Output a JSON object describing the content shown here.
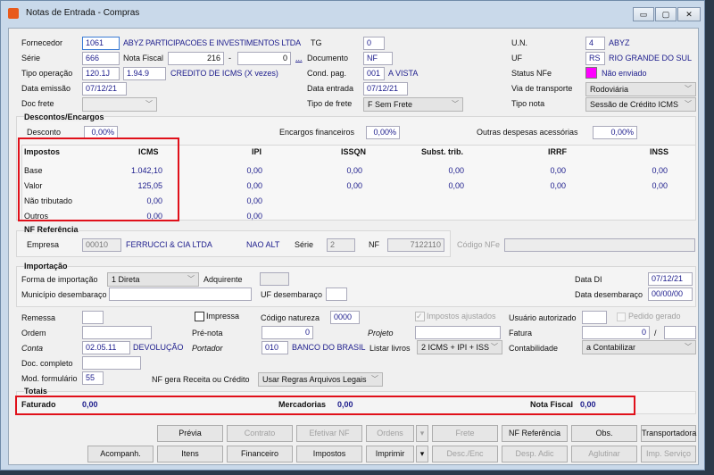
{
  "window": {
    "title": "Notas de Entrada - Compras",
    "icon": "app-icon",
    "controls": {
      "minimize": "▭",
      "maximize": "▢",
      "close": "✕"
    }
  },
  "header": {
    "fornecedor": {
      "label": "Fornecedor",
      "code": "1061",
      "name": "ABYZ PARTICIPACOES E INVESTIMENTOS LTDA"
    },
    "serie": {
      "label": "Série",
      "value": "666"
    },
    "nota_fiscal": {
      "label": "Nota Fiscal",
      "value": "216",
      "dash": "-",
      "value2": "0",
      "more": "..."
    },
    "tipo_operacao": {
      "label": "Tipo operação",
      "code": "120.1J",
      "cfop": "1.94.9",
      "desc": "CREDITO DE ICMS (X vezes)"
    },
    "data_emissao": {
      "label": "Data emissão",
      "value": "07/12/21"
    },
    "doc_frete": {
      "label": "Doc frete",
      "value": ""
    },
    "tg": {
      "label": "TG",
      "value": "0"
    },
    "documento": {
      "label": "Documento",
      "value": "NF"
    },
    "cond_pag": {
      "label": "Cond. pag.",
      "code": "001",
      "desc": "A VISTA"
    },
    "data_entrada": {
      "label": "Data entrada",
      "value": "07/12/21"
    },
    "tipo_frete": {
      "label": "Tipo de frete",
      "value": "F Sem Frete"
    },
    "un": {
      "label": "U.N.",
      "code": "4",
      "desc": "ABYZ"
    },
    "uf": {
      "label": "UF",
      "code": "RS",
      "desc": "RIO GRANDE DO SUL"
    },
    "status_nfe": {
      "label": "Status NFe",
      "value": "Não enviado",
      "color": "#ff00ff"
    },
    "via_transporte": {
      "label": "Via de transporte",
      "value": "Rodoviária"
    },
    "tipo_nota": {
      "label": "Tipo nota",
      "value": "Sessão de Crédito ICMS"
    }
  },
  "descontos": {
    "title": "Descontos/Encargos",
    "desconto_label": "Desconto",
    "desconto": "0,00%",
    "encargos_label": "Encargos financeiros",
    "encargos": "0,00%",
    "outras_label": "Outras despesas acessórias",
    "outras": "0,00%"
  },
  "impostos": {
    "headers": [
      "Impostos",
      "ICMS",
      "IPI",
      "ISSQN",
      "Subst. trib.",
      "IRRF",
      "INSS"
    ],
    "rows": [
      {
        "label": "Base",
        "values": [
          "1.042,10",
          "0,00",
          "0,00",
          "0,00",
          "0,00",
          "0,00"
        ]
      },
      {
        "label": "Valor",
        "values": [
          "125,05",
          "0,00",
          "0,00",
          "0,00",
          "0,00",
          "0,00"
        ]
      },
      {
        "label": "Não tributado",
        "values": [
          "0,00",
          "0,00"
        ]
      },
      {
        "label": "Outros",
        "values": [
          "0,00",
          "0,00"
        ]
      }
    ]
  },
  "nf_referencia": {
    "title": "NF Referência",
    "empresa_label": "Empresa",
    "empresa_code": "00010",
    "empresa_name": "FERRUCCI & CIA LTDA",
    "nao_alt": "NAO ALT",
    "serie_label": "Série",
    "serie": "2",
    "nf_label": "NF",
    "nf": "7122110",
    "codigo_label": "Código NFe",
    "codigo": ""
  },
  "importacao": {
    "title": "Importação",
    "forma_label": "Forma de importação",
    "forma": "1 Direta",
    "adquirente_label": "Adquirente",
    "municipio_label": "Município desembaraço",
    "uf_label": "UF desembaraço",
    "data_di_label": "Data DI",
    "data_di": "07/12/21",
    "data_desemb_label": "Data desembaraço",
    "data_desemb": "00/00/00"
  },
  "outros": {
    "remessa_label": "Remessa",
    "impressa_label": "Impressa",
    "codigo_natureza_label": "Código natureza",
    "codigo_natureza": "0000",
    "impostos_ajustados_label": "Impostos ajustados",
    "usuario_label": "Usuário autorizado",
    "pedido_gerado_label": "Pedido gerado",
    "ordem_label": "Ordem",
    "pre_nota_label": "Pré-nota",
    "pre_nota": "0",
    "projeto_label": "Projeto",
    "fatura_label": "Fatura",
    "fatura": "0",
    "fatura_sep": "/",
    "conta_label": "Conta",
    "conta": "02.05.11",
    "conta_desc": "DEVOLUÇÃO",
    "portador_label": "Portador",
    "portador": "010",
    "portador_desc": "BANCO DO BRASIL",
    "listar_label": "Listar livros",
    "listar": "2 ICMS + IPI + ISS",
    "contabilidade_label": "Contabilidade",
    "contabilidade": "a Contabilizar",
    "doc_completo_label": "Doc. completo",
    "mod_label": "Mod. formulário",
    "mod": "55",
    "nf_gera_label": "NF gera Receita ou Crédito",
    "nf_gera": "Usar Regras Arquivos Legais"
  },
  "totais": {
    "title": "Totais",
    "faturado_label": "Faturado",
    "faturado": "0,00",
    "mercadorias_label": "Mercadorias",
    "mercadorias": "0,00",
    "nota_label": "Nota Fiscal",
    "nota": "0,00"
  },
  "buttons": {
    "row1": [
      "Prévia",
      "Contrato",
      "Efetivar NF",
      "Ordens",
      "Frete",
      "NF Referência",
      "Obs.",
      "Transportadora"
    ],
    "row2": [
      "Acompanh.",
      "Itens",
      "Financeiro",
      "Impostos",
      "Imprimir",
      "Desc./Enc",
      "Desp. Adic",
      "Aglutinar",
      "Imp. Serviço"
    ],
    "arrow": "▾"
  },
  "highlight_color": "#e0101a"
}
